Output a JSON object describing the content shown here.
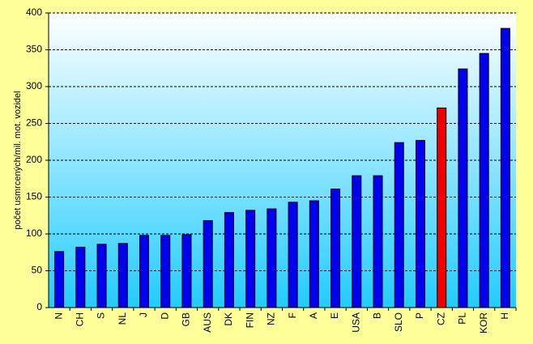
{
  "chart_data": {
    "type": "bar",
    "y_label": "počet usmrcených/mil. mot. vozidel",
    "categories": [
      "N",
      "CH",
      "S",
      "NL",
      "J",
      "D",
      "GB",
      "AUS",
      "DK",
      "FIN",
      "NZ",
      "F",
      "A",
      "E",
      "USA",
      "B",
      "SLO",
      "P",
      "CZ",
      "PL",
      "KOR",
      "H"
    ],
    "values": [
      76,
      82,
      86,
      87,
      98,
      98,
      99,
      118,
      129,
      132,
      134,
      143,
      145,
      161,
      179,
      179,
      224,
      227,
      271,
      324,
      345,
      379
    ],
    "colors": [
      "#0000ee",
      "#0000ee",
      "#0000ee",
      "#0000ee",
      "#0000ee",
      "#0000ee",
      "#0000ee",
      "#0000ee",
      "#0000ee",
      "#0000ee",
      "#0000ee",
      "#0000ee",
      "#0000ee",
      "#0000ee",
      "#0000ee",
      "#0000ee",
      "#0000ee",
      "#0000ee",
      "#ee0000",
      "#0000ee",
      "#0000ee",
      "#0000ee"
    ],
    "ylim": [
      0,
      400
    ],
    "yticks": [
      0,
      50,
      100,
      150,
      200,
      250,
      300,
      350,
      400
    ],
    "grid": true
  }
}
